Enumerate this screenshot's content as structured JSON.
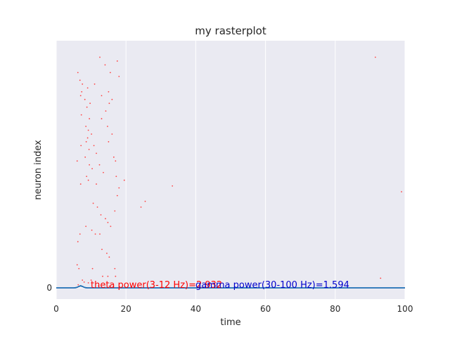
{
  "chart_data": {
    "type": "scatter",
    "title": "my rasterplot",
    "xlabel": "time",
    "ylabel": "neuron index",
    "xlim": [
      0,
      100
    ],
    "xticks": [
      0,
      20,
      40,
      60,
      80,
      100
    ],
    "yticks": [
      0
    ],
    "grid": true,
    "style": "seaborn-darkgrid",
    "colors": {
      "background": "#eaeaf2",
      "spikes": "#ff4444",
      "line": "#1f6fb4",
      "theta": "#ff0000",
      "gamma": "#0000cc"
    },
    "annotations": {
      "theta": "theta power(3-12 Hz)=2.932",
      "gamma": "gamma power(30-100 Hz)=1.594"
    },
    "series": [
      {
        "kind": "spikes",
        "points": [
          [
            6.2,
            56
          ],
          [
            6.8,
            54
          ],
          [
            7.5,
            53
          ],
          [
            7.3,
            51
          ],
          [
            7.0,
            50
          ],
          [
            8.2,
            49
          ],
          [
            9.0,
            52
          ],
          [
            9.7,
            48
          ],
          [
            8.8,
            47
          ],
          [
            7.2,
            45
          ],
          [
            9.5,
            44
          ],
          [
            8.5,
            42
          ],
          [
            9.2,
            41
          ],
          [
            10.1,
            40
          ],
          [
            9.0,
            39
          ],
          [
            8.6,
            38
          ],
          [
            7.1,
            37
          ],
          [
            9.4,
            36
          ],
          [
            8.3,
            34
          ],
          [
            6.0,
            33
          ],
          [
            9.5,
            32
          ],
          [
            10.3,
            31
          ],
          [
            8.7,
            29
          ],
          [
            9.2,
            28
          ],
          [
            7.0,
            27
          ],
          [
            10.8,
            37
          ],
          [
            11.5,
            35
          ],
          [
            12.4,
            32
          ],
          [
            13.5,
            30
          ],
          [
            13.0,
            44
          ],
          [
            14.2,
            46
          ],
          [
            15.2,
            48
          ],
          [
            14.7,
            42
          ],
          [
            16.0,
            40
          ],
          [
            15.0,
            38
          ],
          [
            16.5,
            34
          ],
          [
            17.2,
            29
          ],
          [
            18.0,
            26
          ],
          [
            17.5,
            24
          ],
          [
            16.8,
            20
          ],
          [
            10.6,
            22
          ],
          [
            11.8,
            21
          ],
          [
            12.8,
            19
          ],
          [
            14.1,
            18
          ],
          [
            14.8,
            17
          ],
          [
            15.6,
            16
          ],
          [
            10.2,
            15
          ],
          [
            11.2,
            14
          ],
          [
            12.5,
            14
          ],
          [
            8.5,
            16
          ],
          [
            6.8,
            14
          ],
          [
            6.2,
            12
          ],
          [
            13.1,
            10
          ],
          [
            14.5,
            9
          ],
          [
            15.2,
            8
          ],
          [
            6.0,
            6
          ],
          [
            6.5,
            5
          ],
          [
            10.4,
            5
          ],
          [
            16.8,
            5
          ],
          [
            13.3,
            3
          ],
          [
            14.8,
            3
          ],
          [
            17.0,
            3
          ],
          [
            7.5,
            2
          ],
          [
            10.0,
            2
          ],
          [
            8.0,
            1.5
          ],
          [
            9.2,
            1.3
          ],
          [
            6.3,
            0.8
          ],
          [
            12.1,
            0.5
          ],
          [
            15.2,
            0.4
          ],
          [
            12.5,
            60
          ],
          [
            14.0,
            58
          ],
          [
            15.5,
            56
          ],
          [
            17.5,
            59
          ],
          [
            18.0,
            55
          ],
          [
            11.0,
            53
          ],
          [
            13.0,
            50
          ],
          [
            15.0,
            51
          ],
          [
            16.0,
            49
          ],
          [
            11.5,
            27
          ],
          [
            17.0,
            33
          ],
          [
            19.5,
            28
          ],
          [
            24.3,
            21
          ],
          [
            25.5,
            22.5
          ],
          [
            33.3,
            26.5
          ],
          [
            91.5,
            60
          ],
          [
            93.0,
            2.5
          ],
          [
            99.0,
            25
          ]
        ]
      },
      {
        "kind": "line",
        "x": [
          0,
          5,
          5.5,
          6,
          6.5,
          7,
          7.5,
          8,
          8.5,
          9,
          10,
          15,
          20,
          40,
          60,
          80,
          100
        ],
        "y": [
          0,
          0,
          0.02,
          0.08,
          0.2,
          0.3,
          0.2,
          0.08,
          0.02,
          0,
          0,
          0,
          0,
          0,
          0,
          0,
          0
        ]
      }
    ]
  }
}
